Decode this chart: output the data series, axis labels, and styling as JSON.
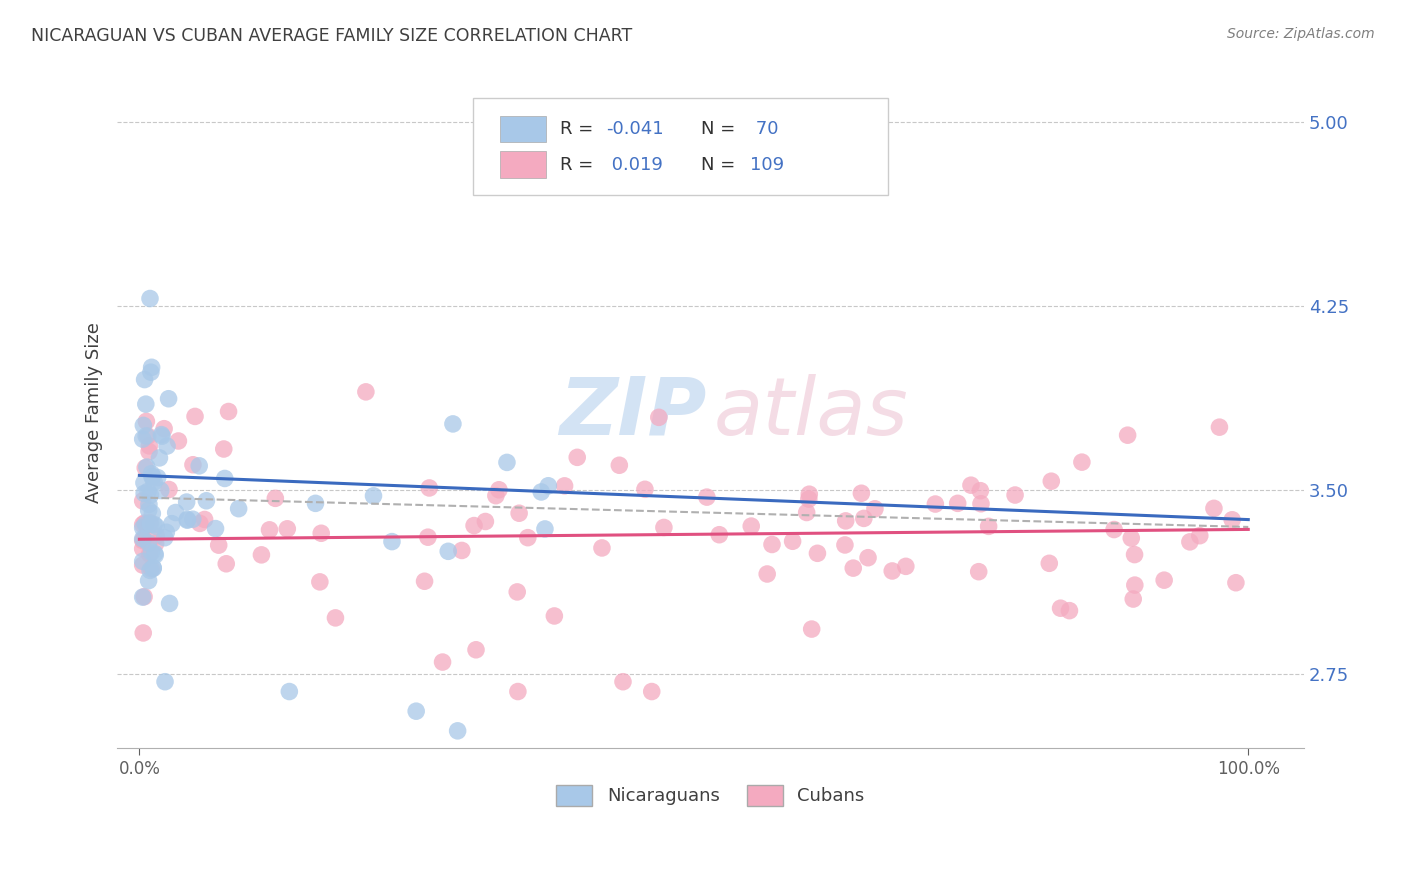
{
  "title": "NICARAGUAN VS CUBAN AVERAGE FAMILY SIZE CORRELATION CHART",
  "source": "Source: ZipAtlas.com",
  "ylabel": "Average Family Size",
  "yticks": [
    2.75,
    3.5,
    4.25,
    5.0
  ],
  "xlim": [
    -0.02,
    1.05
  ],
  "ylim": [
    2.45,
    5.18
  ],
  "nic_color": "#a8c8e8",
  "cub_color": "#f4aac0",
  "nic_line_color": "#3a6abf",
  "cub_line_color": "#e05080",
  "dash_line_color": "#b0b0b0",
  "background_color": "#ffffff",
  "grid_color": "#c8c8c8",
  "title_color": "#404040",
  "axis_label_color": "#4472c4",
  "source_color": "#808080",
  "legend_r_color": "#4472c4",
  "nic_n": 70,
  "cub_n": 109,
  "nic_line_x0": 0.0,
  "nic_line_y0": 3.56,
  "nic_line_x1": 1.0,
  "nic_line_y1": 3.38,
  "cub_line_x0": 0.0,
  "cub_line_y0": 3.3,
  "cub_line_x1": 1.0,
  "cub_line_y1": 3.34,
  "dash_line_x0": 0.0,
  "dash_line_y0": 3.47,
  "dash_line_x1": 1.0,
  "dash_line_y1": 3.35,
  "watermark_zip_color": "#b0ccec",
  "watermark_atlas_color": "#ecc0d0",
  "legend_nic_label_r": "R = -0.041",
  "legend_nic_label_n": "N =  70",
  "legend_cub_label_r": "R =  0.019",
  "legend_cub_label_n": "N = 109",
  "bottom_legend_nic": "Nicaraguans",
  "bottom_legend_cub": "Cubans"
}
